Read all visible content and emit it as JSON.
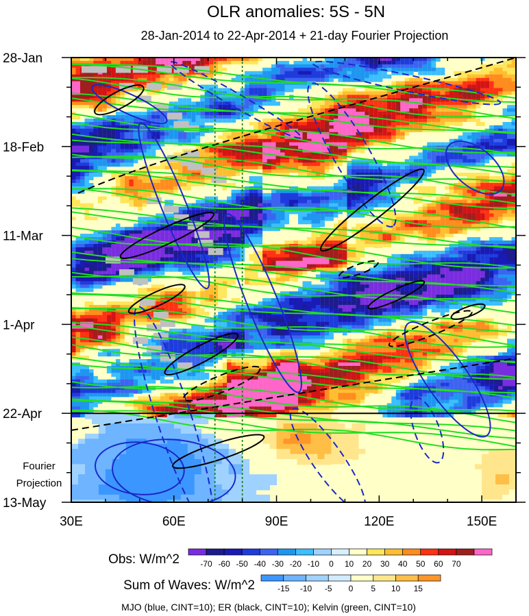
{
  "chart_data": {
    "type": "heatmap",
    "title": "OLR anomalies: 5S - 5N",
    "subtitle": "28-Jan-2014 to 22-Apr-2014 + 21-day Fourier Projection",
    "x_axis": {
      "ticks": [
        {
          "value": 30,
          "label": "30E"
        },
        {
          "value": 60,
          "label": "60E"
        },
        {
          "value": 90,
          "label": "90E"
        },
        {
          "value": 120,
          "label": "120E"
        },
        {
          "value": 150,
          "label": "150E"
        }
      ],
      "range": [
        30,
        160
      ]
    },
    "y_axis": {
      "ticks": [
        {
          "day": 0,
          "label": "28-Jan"
        },
        {
          "day": 21,
          "label": "18-Feb"
        },
        {
          "day": 42,
          "label": "11-Mar"
        },
        {
          "day": 63,
          "label": "1-Apr"
        },
        {
          "day": 84,
          "label": "22-Apr"
        },
        {
          "day": 105,
          "label": "13-May"
        }
      ],
      "range_days": [
        0,
        105
      ],
      "projection_start_day": 84
    },
    "projection_label_line1": "Fourier",
    "projection_label_line2": "Projection",
    "reference_lines_lon": [
      72,
      80
    ],
    "obs_colorbar": {
      "title": "Obs: W/m^2",
      "labels": [
        "-70",
        "-60",
        "-50",
        "-40",
        "-30",
        "-20",
        "-10",
        "0",
        "10",
        "20",
        "30",
        "40",
        "50",
        "60",
        "70"
      ],
      "colors": [
        "#7a2ce0",
        "#1c1c8c",
        "#1a1ab4",
        "#1e3cdc",
        "#3c64f0",
        "#1e96f0",
        "#3cbeff",
        "#a0d2ff",
        "#d7f0ff",
        "#ffffc8",
        "#ffe65a",
        "#ffbe32",
        "#ff8c1e",
        "#ff3214",
        "#d21414",
        "#a01e1e",
        "#ff66c8"
      ]
    },
    "waves_colorbar": {
      "title": "Sum of Waves: W/m^2",
      "labels": [
        "-15",
        "-10",
        "-5",
        "0",
        "5",
        "10",
        "15"
      ],
      "colors": [
        "#3c96ff",
        "#6eb4ff",
        "#a0d2ff",
        "#d2ecff",
        "#ffffc8",
        "#ffe68c",
        "#ffbe46",
        "#ff9628"
      ]
    },
    "footer": "MJO (blue, CINT=10); ER (black, CINT=10); Kelvin (green, CINT=10)",
    "wave_colors": {
      "mjo": "#1a28c8",
      "er": "#000000",
      "kelvin": "#22dd22"
    }
  }
}
